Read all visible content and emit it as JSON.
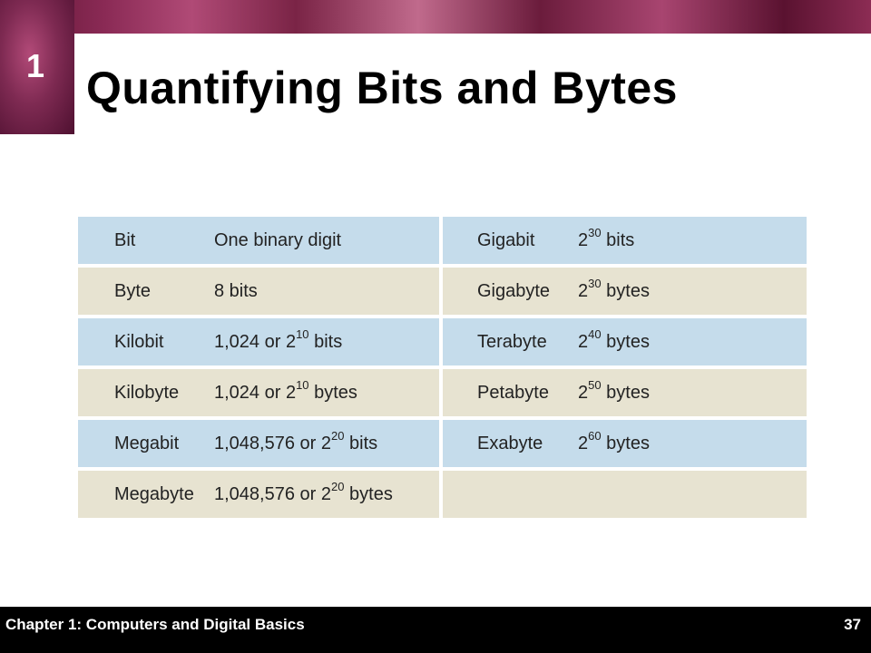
{
  "chapter_number": "1",
  "title": "Quantifying Bits and Bytes",
  "table": {
    "left": [
      {
        "term": "Bit",
        "value_pre": "One binary digit",
        "exp": "",
        "value_post": "",
        "color": "blue"
      },
      {
        "term": "Byte",
        "value_pre": "8 bits",
        "exp": "",
        "value_post": "",
        "color": "beige"
      },
      {
        "term": "Kilobit",
        "value_pre": "1,024 or 2",
        "exp": "10",
        "value_post": " bits",
        "color": "blue"
      },
      {
        "term": "Kilobyte",
        "value_pre": "1,024 or 2",
        "exp": "10",
        "value_post": " bytes",
        "color": "beige"
      },
      {
        "term": "Megabit",
        "value_pre": "1,048,576 or 2",
        "exp": "20",
        "value_post": " bits",
        "color": "blue"
      },
      {
        "term": "Megabyte",
        "value_pre": "1,048,576 or 2",
        "exp": "20",
        "value_post": " bytes",
        "color": "beige"
      }
    ],
    "right": [
      {
        "term": "Gigabit",
        "value_pre": "2",
        "exp": "30",
        "value_post": " bits",
        "color": "blue"
      },
      {
        "term": "Gigabyte",
        "value_pre": "2",
        "exp": "30",
        "value_post": " bytes",
        "color": "beige"
      },
      {
        "term": "Terabyte",
        "value_pre": "2",
        "exp": "40",
        "value_post": " bytes",
        "color": "blue"
      },
      {
        "term": "Petabyte",
        "value_pre": "2",
        "exp": "50",
        "value_post": " bytes",
        "color": "beige"
      },
      {
        "term": "Exabyte",
        "value_pre": "2",
        "exp": "60",
        "value_post": " bytes",
        "color": "blue"
      },
      {
        "term": "",
        "value_pre": "",
        "exp": "",
        "value_post": "",
        "color": "beige"
      }
    ]
  },
  "footer": {
    "chapter_label": "Chapter 1: Computers and Digital Basics",
    "page_number": "37"
  },
  "colors": {
    "row_blue": "#c5dceb",
    "row_beige": "#e7e3d1",
    "brand": "#7e2a52"
  }
}
